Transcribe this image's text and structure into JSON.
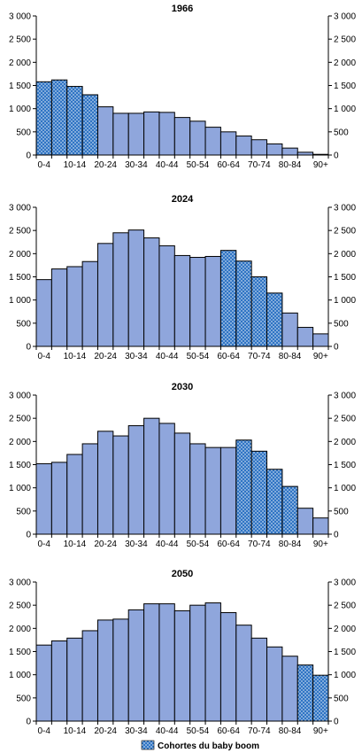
{
  "colors": {
    "bar_fill": "#8fa6dc",
    "boom_fill": "#2f74c4",
    "boom_dot": "#ffffff",
    "stroke": "#000000"
  },
  "legend": {
    "label": "Cohortes du baby boom"
  },
  "chart_data": [
    {
      "type": "bar",
      "title": "1966",
      "categories": [
        "0-4",
        "5-9",
        "10-14",
        "15-19",
        "20-24",
        "25-29",
        "30-34",
        "35-39",
        "40-44",
        "45-49",
        "50-54",
        "55-59",
        "60-64",
        "65-69",
        "70-74",
        "75-79",
        "80-84",
        "85-89",
        "90+"
      ],
      "x_tick_labels": [
        "0-4",
        "10-14",
        "20-24",
        "30-34",
        "40-44",
        "50-54",
        "60-64",
        "70-74",
        "80-84",
        "90+"
      ],
      "values": [
        1580,
        1620,
        1480,
        1300,
        1040,
        900,
        900,
        930,
        920,
        810,
        730,
        600,
        500,
        410,
        330,
        240,
        150,
        60,
        15
      ],
      "baby_boom": [
        true,
        true,
        true,
        true,
        false,
        false,
        false,
        false,
        false,
        false,
        false,
        false,
        false,
        false,
        false,
        false,
        false,
        false,
        false
      ],
      "ylim": [
        0,
        3000
      ],
      "y_ticks": [
        0,
        500,
        1000,
        1500,
        2000,
        2500,
        3000
      ],
      "y_tick_labels": [
        "0",
        "500",
        "1 000",
        "1 500",
        "2 000",
        "2 500",
        "3 000"
      ]
    },
    {
      "type": "bar",
      "title": "2024",
      "categories": [
        "0-4",
        "5-9",
        "10-14",
        "15-19",
        "20-24",
        "25-29",
        "30-34",
        "35-39",
        "40-44",
        "45-49",
        "50-54",
        "55-59",
        "60-64",
        "65-69",
        "70-74",
        "75-79",
        "80-84",
        "85-89",
        "90+"
      ],
      "x_tick_labels": [
        "0-4",
        "10-14",
        "20-24",
        "30-34",
        "40-44",
        "50-54",
        "60-64",
        "70-74",
        "80-84",
        "90+"
      ],
      "values": [
        1440,
        1670,
        1720,
        1830,
        2220,
        2450,
        2510,
        2340,
        2170,
        1960,
        1920,
        1940,
        2070,
        1840,
        1500,
        1150,
        720,
        410,
        270
      ],
      "baby_boom": [
        false,
        false,
        false,
        false,
        false,
        false,
        false,
        false,
        false,
        false,
        false,
        false,
        true,
        true,
        true,
        true,
        false,
        false,
        false
      ],
      "ylim": [
        0,
        3000
      ],
      "y_ticks": [
        0,
        500,
        1000,
        1500,
        2000,
        2500,
        3000
      ],
      "y_tick_labels": [
        "0",
        "500",
        "1 000",
        "1 500",
        "2 000",
        "2 500",
        "3 000"
      ]
    },
    {
      "type": "bar",
      "title": "2030",
      "categories": [
        "0-4",
        "5-9",
        "10-14",
        "15-19",
        "20-24",
        "25-29",
        "30-34",
        "35-39",
        "40-44",
        "45-49",
        "50-54",
        "55-59",
        "60-64",
        "65-69",
        "70-74",
        "75-79",
        "80-84",
        "85-89",
        "90+"
      ],
      "x_tick_labels": [
        "0-4",
        "10-14",
        "20-24",
        "30-34",
        "40-44",
        "50-54",
        "60-64",
        "70-74",
        "80-84",
        "90+"
      ],
      "values": [
        1520,
        1550,
        1720,
        1950,
        2220,
        2120,
        2340,
        2500,
        2390,
        2180,
        1950,
        1870,
        1870,
        2030,
        1790,
        1400,
        1030,
        560,
        350
      ],
      "baby_boom": [
        false,
        false,
        false,
        false,
        false,
        false,
        false,
        false,
        false,
        false,
        false,
        false,
        false,
        true,
        true,
        true,
        true,
        false,
        false
      ],
      "ylim": [
        0,
        3000
      ],
      "y_ticks": [
        0,
        500,
        1000,
        1500,
        2000,
        2500,
        3000
      ],
      "y_tick_labels": [
        "0",
        "500",
        "1 000",
        "1 500",
        "2 000",
        "2 500",
        "3 000"
      ]
    },
    {
      "type": "bar",
      "title": "2050",
      "categories": [
        "0-4",
        "5-9",
        "10-14",
        "15-19",
        "20-24",
        "25-29",
        "30-34",
        "35-39",
        "40-44",
        "45-49",
        "50-54",
        "55-59",
        "60-64",
        "65-69",
        "70-74",
        "75-79",
        "80-84",
        "85-89",
        "90+"
      ],
      "x_tick_labels": [
        "0-4",
        "10-14",
        "20-24",
        "30-34",
        "40-44",
        "50-54",
        "60-64",
        "70-74",
        "80-84",
        "90+"
      ],
      "values": [
        1640,
        1730,
        1790,
        1950,
        2180,
        2200,
        2400,
        2530,
        2530,
        2380,
        2500,
        2550,
        2340,
        2070,
        1790,
        1600,
        1400,
        1210,
        990
      ],
      "baby_boom": [
        false,
        false,
        false,
        false,
        false,
        false,
        false,
        false,
        false,
        false,
        false,
        false,
        false,
        false,
        false,
        false,
        false,
        true,
        true
      ],
      "ylim": [
        0,
        3000
      ],
      "y_ticks": [
        0,
        500,
        1000,
        1500,
        2000,
        2500,
        3000
      ],
      "y_tick_labels": [
        "0",
        "500",
        "1 000",
        "1 500",
        "2 000",
        "2 500",
        "3 000"
      ]
    }
  ]
}
